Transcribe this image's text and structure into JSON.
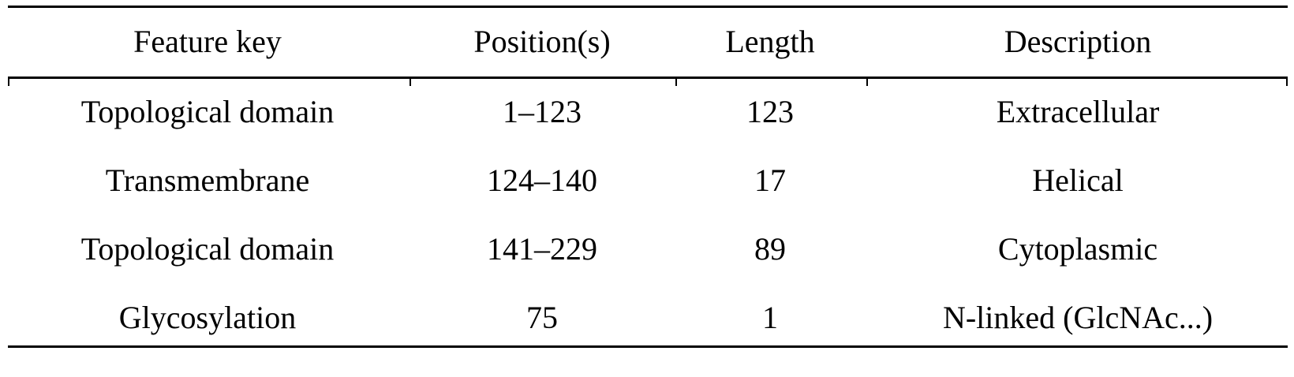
{
  "table": {
    "headers": [
      "Feature key",
      "Position(s)",
      "Length",
      "Description"
    ],
    "rows": [
      [
        "Topological domain",
        "1–123",
        "123",
        "Extracellular"
      ],
      [
        "Transmembrane",
        "124–140",
        "17",
        "Helical"
      ],
      [
        "Topological domain",
        "141–229",
        "89",
        "Cytoplasmic"
      ],
      [
        "Glycosylation",
        "75",
        "1",
        "N-linked (GlcNAc...)"
      ]
    ]
  }
}
